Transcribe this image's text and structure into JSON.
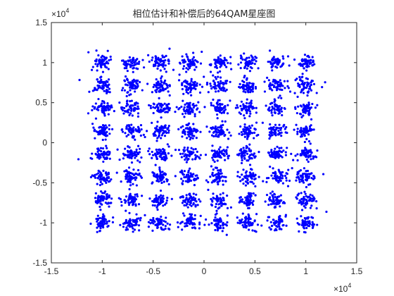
{
  "chart_data": {
    "type": "scatter",
    "title": "相位估计和补偿后的64QAM星座图",
    "xlabel": "",
    "ylabel": "",
    "xlim": [
      -15000,
      15000
    ],
    "ylim": [
      -15000,
      15000
    ],
    "x_ticks": [
      -15000,
      -10000,
      -5000,
      0,
      5000,
      10000,
      15000
    ],
    "y_ticks": [
      -15000,
      -10000,
      -5000,
      0,
      5000,
      10000,
      15000
    ],
    "x_tick_labels": [
      "-1.5",
      "-1",
      "-0.5",
      "0",
      "0.5",
      "1",
      "1.5"
    ],
    "y_tick_labels": [
      "-1.5",
      "-1",
      "-0.5",
      "0",
      "0.5",
      "1",
      "1.5"
    ],
    "x_multiplier_base": "×10",
    "x_multiplier_exponent": "4",
    "y_multiplier_base": "×10",
    "y_multiplier_exponent": "4",
    "grid": false,
    "legend": "none",
    "marker_color": "#0000ff",
    "constellation": {
      "levels": [
        -10000,
        -7143,
        -4286,
        -1429,
        1429,
        4286,
        7143,
        10000
      ],
      "cluster_spread": 450,
      "points_per_cluster": 55
    }
  }
}
